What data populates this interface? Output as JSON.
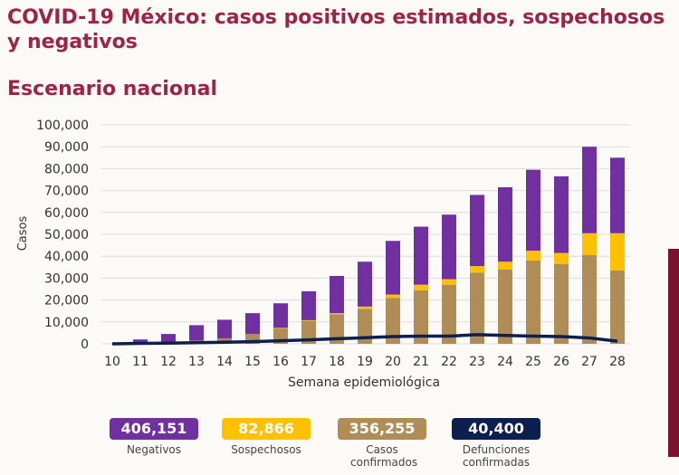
{
  "title": "COVID-19 México: casos positivos estimados, sospechosos y negativos",
  "subtitle": "Escenario nacional",
  "colors": {
    "title": "#9d2449",
    "negativos": "#7030a0",
    "sospechosos": "#ffc000",
    "confirmados": "#b08d57",
    "defunciones": "#0d1f4f"
  },
  "chart_data": {
    "type": "bar",
    "stacked": true,
    "xlabel": "Semana epidemiológica",
    "ylabel": "Casos",
    "ylim": [
      0,
      100000
    ],
    "yticks": [
      "0",
      "10,000",
      "20,000",
      "30,000",
      "40,000",
      "50,000",
      "60,000",
      "70,000",
      "80,000",
      "90,000",
      "100,000"
    ],
    "grid": true,
    "categories": [
      "10",
      "11",
      "12",
      "13",
      "14",
      "15",
      "16",
      "17",
      "18",
      "19",
      "20",
      "21",
      "22",
      "23",
      "24",
      "25",
      "26",
      "27",
      "28"
    ],
    "series": [
      {
        "name": "Casos confirmados",
        "values": [
          0,
          300,
          500,
          1500,
          2500,
          4500,
          7000,
          10500,
          13500,
          16000,
          21000,
          24500,
          27000,
          32500,
          34000,
          38000,
          36500,
          40500,
          33500
        ]
      },
      {
        "name": "Sospechosos",
        "values": [
          0,
          0,
          0,
          0,
          0,
          0,
          300,
          300,
          500,
          1000,
          1500,
          2500,
          2500,
          3000,
          3500,
          4500,
          5000,
          10000,
          17000
        ]
      },
      {
        "name": "Negativos",
        "values": [
          0,
          1700,
          4000,
          7000,
          8500,
          9500,
          11200,
          13200,
          17000,
          20500,
          24500,
          26500,
          29500,
          32500,
          34000,
          37000,
          35000,
          39500,
          34500
        ]
      },
      {
        "name": "Defunciones confirmadas",
        "type": "line",
        "values": [
          0,
          200,
          300,
          500,
          700,
          1000,
          1400,
          1800,
          2300,
          2800,
          3300,
          3500,
          3500,
          4200,
          3800,
          3500,
          3300,
          2700,
          1200
        ]
      }
    ]
  },
  "legend": [
    {
      "value": "406,151",
      "label": "Negativos",
      "color": "#7030a0",
      "text": "#fff"
    },
    {
      "value": "82,866",
      "label": "Sospechosos",
      "color": "#ffc000",
      "text": "#fff"
    },
    {
      "value": "356,255",
      "label": "Casos confirmados",
      "color": "#b08d57",
      "text": "#fff"
    },
    {
      "value": "40,400",
      "label": "Defunciones confirmadas",
      "color": "#0d1f4f",
      "text": "#fff"
    }
  ]
}
